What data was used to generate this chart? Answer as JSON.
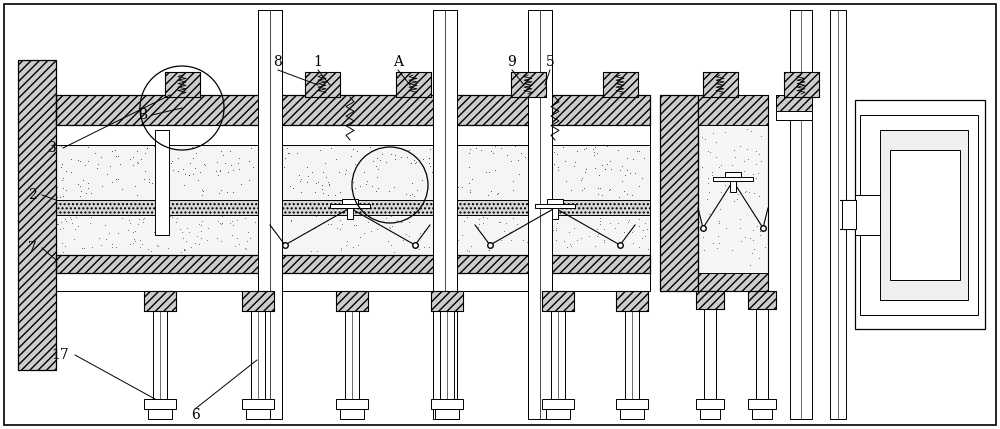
{
  "bg_color": "#ffffff",
  "lc": "#000000",
  "fig_width": 10.0,
  "fig_height": 4.29,
  "dpi": 100
}
